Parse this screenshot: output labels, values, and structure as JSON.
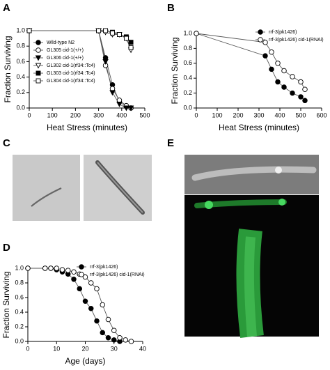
{
  "panel_labels": [
    "A",
    "B",
    "C",
    "D",
    "E"
  ],
  "chart_data": [
    {
      "type": "line",
      "xlabel": "Heat Stress (minutes)",
      "ylabel": "Fraction Surviving",
      "x": [
        0,
        300,
        330,
        360,
        390,
        420,
        440
      ],
      "xlim": [
        0,
        500
      ],
      "xticks": [
        0,
        100,
        200,
        300,
        400,
        500
      ],
      "ylim": [
        0,
        1
      ],
      "yticks": [
        {
          "value": 0,
          "label": "0.0"
        },
        0.2,
        0.4,
        0.6,
        0.8,
        {
          "value": 1,
          "label": "1.0"
        }
      ],
      "legend": "lower left",
      "series": [
        {
          "name": "Wild-type N2",
          "color": "#000000",
          "marker": "circle",
          "filled": true,
          "values": [
            1,
            1,
            0.65,
            0.3,
            0.08,
            0.02,
            0
          ]
        },
        {
          "name": "GL305 cid-1(+/+)",
          "color": "#000000",
          "marker": "circle",
          "filled": false,
          "values": [
            1,
            1,
            0.55,
            0.25,
            0.1,
            0.03,
            0
          ]
        },
        {
          "name": "GL306 cid-1(+/+)",
          "color": "#000000",
          "marker": "triangle",
          "filled": true,
          "values": [
            1,
            1,
            0.6,
            0.2,
            0.05,
            0,
            0
          ]
        },
        {
          "name": "GL302 cid-1(rf34::Tc4)",
          "color": "#000000",
          "marker": "triangle",
          "filled": false,
          "values": [
            1,
            1,
            0.98,
            0.95,
            0.95,
            0.9,
            0.75
          ]
        },
        {
          "name": "GL303 cid-1(rf34::Tc4)",
          "color": "#000000",
          "marker": "square",
          "filled": true,
          "values": [
            1,
            1,
            1,
            0.98,
            0.95,
            0.92,
            0.85
          ]
        },
        {
          "name": "GL304 cid-1(rf34::Tc4)",
          "color": "#000000",
          "marker": "square",
          "filled": false,
          "values": [
            1,
            1,
            1,
            0.97,
            0.95,
            0.9,
            0.78
          ]
        }
      ]
    },
    {
      "type": "line",
      "xlabel": "Heat Stress (minutes)",
      "ylabel": "Fraction Surviving",
      "x": [
        0,
        330,
        360,
        390,
        420,
        460,
        500,
        520
      ],
      "xlim": [
        0,
        600
      ],
      "xticks": [
        0,
        100,
        200,
        300,
        400,
        500,
        600
      ],
      "ylim": [
        0,
        1
      ],
      "yticks": [
        {
          "value": 0,
          "label": "0.0"
        },
        0.2,
        0.4,
        0.6,
        0.8,
        {
          "value": 1,
          "label": "1.0"
        }
      ],
      "legend": "upper right",
      "series": [
        {
          "name": "rrf-3(pk1426)",
          "color": "#000000",
          "marker": "circle",
          "filled": true,
          "values": [
            1,
            0.7,
            0.52,
            0.35,
            0.28,
            0.2,
            0.15,
            0.1
          ]
        },
        {
          "name": "rrf-3(pk1426) cid-1(RNAi)",
          "color": "#000000",
          "marker": "circle",
          "filled": false,
          "values": [
            1,
            0.88,
            0.75,
            0.6,
            0.5,
            0.42,
            0.35,
            0.25
          ]
        }
      ]
    },
    {
      "type": "line",
      "xlabel": "Age (days)",
      "ylabel": "Fraction Surviving",
      "x": [
        0,
        6,
        8,
        10,
        12,
        14,
        16,
        18,
        20,
        22,
        24,
        26,
        28,
        30,
        32,
        34,
        36
      ],
      "xlim": [
        0,
        40
      ],
      "xticks": [
        0,
        10,
        20,
        30,
        40
      ],
      "ylim": [
        0,
        1
      ],
      "yticks": [
        {
          "value": 0,
          "label": "0.0"
        },
        0.2,
        0.4,
        0.6,
        0.8,
        {
          "value": 1,
          "label": "1.0"
        }
      ],
      "legend": "upper right",
      "series": [
        {
          "name": "rrf-3(pk1426)",
          "color": "#000000",
          "marker": "circle",
          "filled": true,
          "values": [
            1,
            1,
            1,
            0.98,
            0.95,
            0.92,
            0.85,
            0.72,
            0.55,
            0.45,
            0.28,
            0.12,
            0.05,
            0.02,
            0,
            null,
            null
          ]
        },
        {
          "name": "rrf-3(pk1426) cid-1(RNAi)",
          "color": "#000000",
          "marker": "circle",
          "filled": false,
          "values": [
            1,
            1,
            1,
            1,
            0.98,
            0.97,
            0.95,
            0.92,
            0.88,
            0.8,
            0.72,
            0.5,
            0.3,
            0.15,
            0.05,
            0.02,
            0
          ]
        }
      ]
    }
  ]
}
